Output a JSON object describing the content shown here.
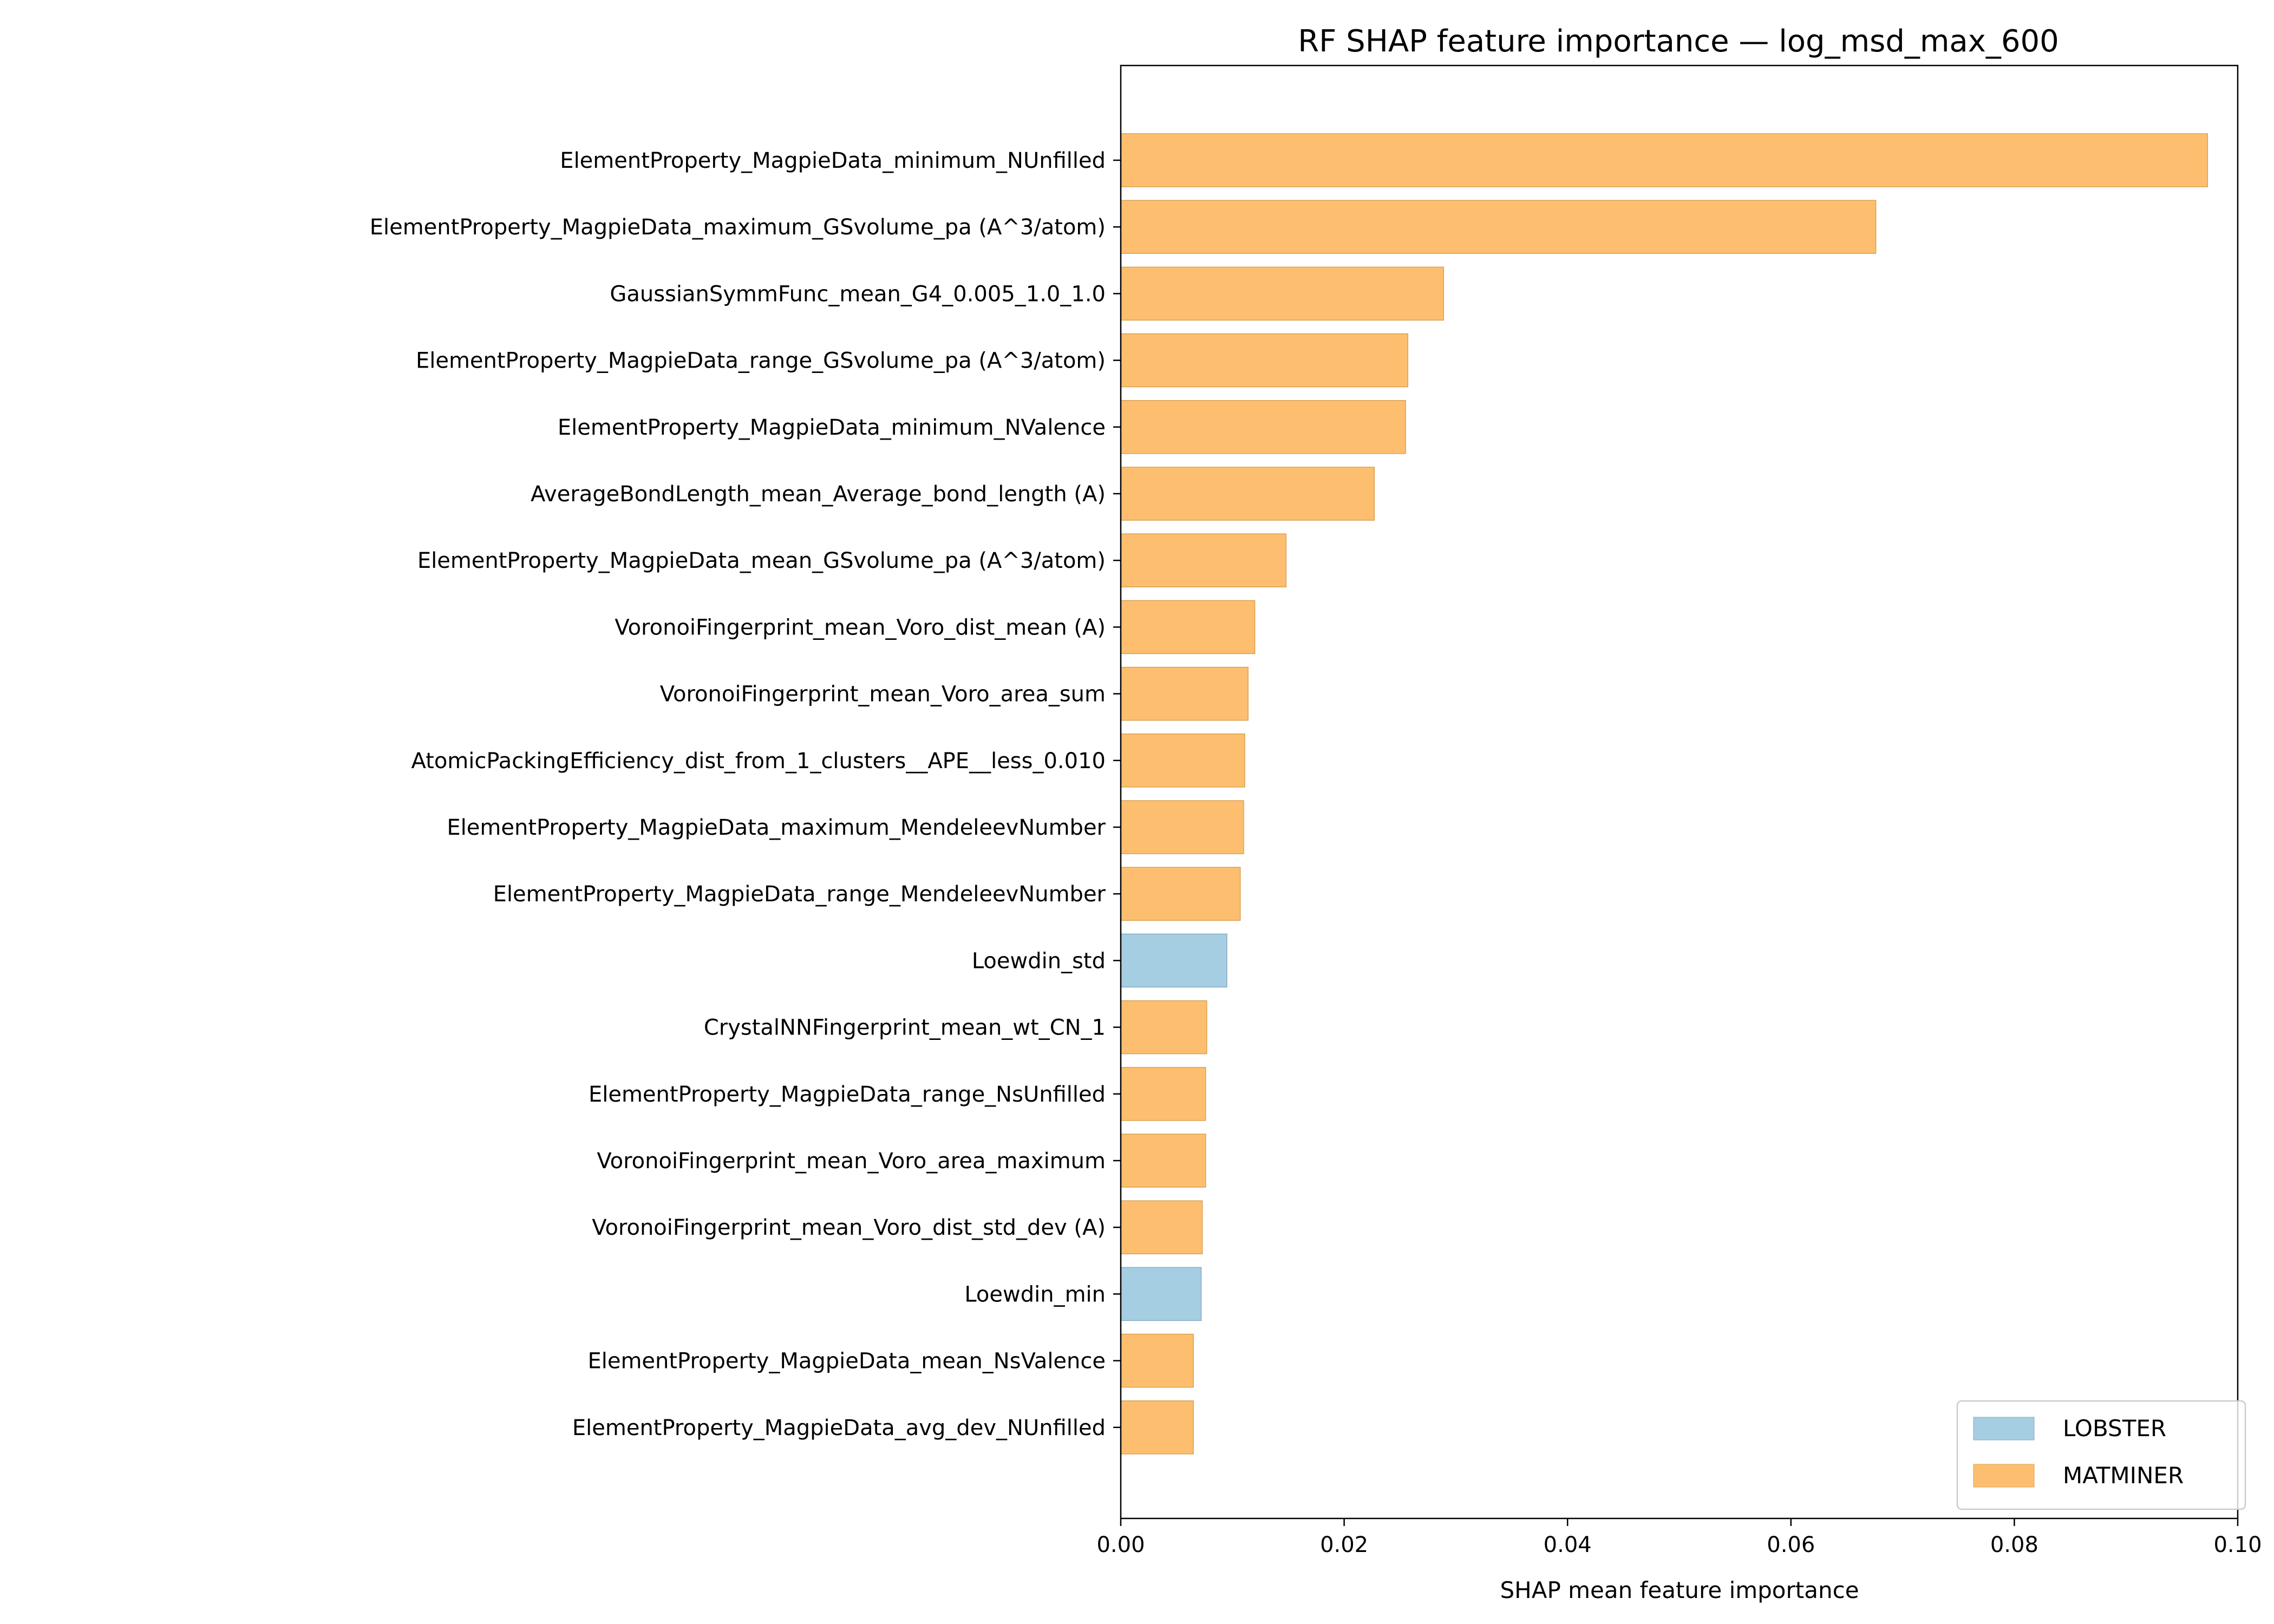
{
  "chart_data": {
    "type": "bar",
    "orientation": "horizontal",
    "title": "RF SHAP feature importance — log_msd_max_600",
    "xlabel": "SHAP mean feature importance",
    "ylabel": "",
    "xlim": [
      0.0,
      0.1
    ],
    "xticks": [
      0.0,
      0.02,
      0.04,
      0.06,
      0.08,
      0.1
    ],
    "xtick_labels": [
      "0.00",
      "0.02",
      "0.04",
      "0.06",
      "0.08",
      "0.10"
    ],
    "grid": false,
    "legend_position": "bottom-right",
    "legend": [
      {
        "name": "LOBSTER",
        "color": "#a6cee3"
      },
      {
        "name": "MATMINER",
        "color": "#fdbf6f"
      }
    ],
    "bars": [
      {
        "label": "ElementProperty_MagpieData_minimum_NUnfilled",
        "value": 0.0973,
        "group": "MATMINER"
      },
      {
        "label": "ElementProperty_MagpieData_maximum_GSvolume_pa (A^3/atom)",
        "value": 0.0676,
        "group": "MATMINER"
      },
      {
        "label": "GaussianSymmFunc_mean_G4_0.005_1.0_1.0",
        "value": 0.0289,
        "group": "MATMINER"
      },
      {
        "label": "ElementProperty_MagpieData_range_GSvolume_pa (A^3/atom)",
        "value": 0.0257,
        "group": "MATMINER"
      },
      {
        "label": "ElementProperty_MagpieData_minimum_NValence",
        "value": 0.0255,
        "group": "MATMINER"
      },
      {
        "label": "AverageBondLength_mean_Average_bond_length (A)",
        "value": 0.0227,
        "group": "MATMINER"
      },
      {
        "label": "ElementProperty_MagpieData_mean_GSvolume_pa (A^3/atom)",
        "value": 0.0148,
        "group": "MATMINER"
      },
      {
        "label": "VoronoiFingerprint_mean_Voro_dist_mean (A)",
        "value": 0.012,
        "group": "MATMINER"
      },
      {
        "label": "VoronoiFingerprint_mean_Voro_area_sum",
        "value": 0.0114,
        "group": "MATMINER"
      },
      {
        "label": "AtomicPackingEfficiency_dist_from_1_clusters__APE__less_0.010",
        "value": 0.0111,
        "group": "MATMINER"
      },
      {
        "label": "ElementProperty_MagpieData_maximum_MendeleevNumber",
        "value": 0.011,
        "group": "MATMINER"
      },
      {
        "label": "ElementProperty_MagpieData_range_MendeleevNumber",
        "value": 0.0107,
        "group": "MATMINER"
      },
      {
        "label": "Loewdin_std",
        "value": 0.0095,
        "group": "LOBSTER"
      },
      {
        "label": "CrystalNNFingerprint_mean_wt_CN_1",
        "value": 0.0077,
        "group": "MATMINER"
      },
      {
        "label": "ElementProperty_MagpieData_range_NsUnfilled",
        "value": 0.0076,
        "group": "MATMINER"
      },
      {
        "label": "VoronoiFingerprint_mean_Voro_area_maximum",
        "value": 0.0076,
        "group": "MATMINER"
      },
      {
        "label": "VoronoiFingerprint_mean_Voro_dist_std_dev (A)",
        "value": 0.0073,
        "group": "MATMINER"
      },
      {
        "label": "Loewdin_min",
        "value": 0.0072,
        "group": "LOBSTER"
      },
      {
        "label": "ElementProperty_MagpieData_mean_NsValence",
        "value": 0.0065,
        "group": "MATMINER"
      },
      {
        "label": "ElementProperty_MagpieData_avg_dev_NUnfilled",
        "value": 0.0065,
        "group": "MATMINER"
      }
    ]
  }
}
